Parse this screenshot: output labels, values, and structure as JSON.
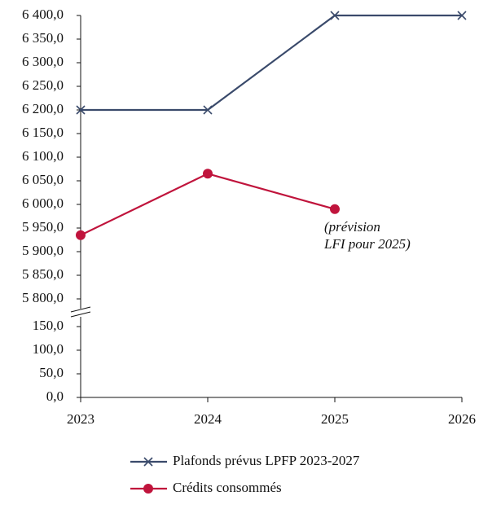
{
  "chart_data": {
    "type": "line",
    "x": [
      2023,
      2024,
      2025,
      2026
    ],
    "xlim": [
      2023,
      2026
    ],
    "xticks": [
      2023,
      2024,
      2025,
      2026
    ],
    "ylim": [
      0,
      6400
    ],
    "y_break": [
      150,
      5800
    ],
    "yticks": [
      {
        "value": 0,
        "label": "0,0"
      },
      {
        "value": 50,
        "label": "50,0"
      },
      {
        "value": 100,
        "label": "100,0"
      },
      {
        "value": 150,
        "label": "150,0"
      },
      {
        "value": 5800,
        "label": "5 800,0"
      },
      {
        "value": 5850,
        "label": "5 850,0"
      },
      {
        "value": 5900,
        "label": "5 900,0"
      },
      {
        "value": 5950,
        "label": "5 950,0"
      },
      {
        "value": 6000,
        "label": "6 000,0"
      },
      {
        "value": 6050,
        "label": "6 050,0"
      },
      {
        "value": 6100,
        "label": "6 100,0"
      },
      {
        "value": 6150,
        "label": "6 150,0"
      },
      {
        "value": 6200,
        "label": "6 200,0"
      },
      {
        "value": 6250,
        "label": "6 250,0"
      },
      {
        "value": 6300,
        "label": "6 300,0"
      },
      {
        "value": 6350,
        "label": "6 350,0"
      },
      {
        "value": 6400,
        "label": "6 400,0"
      }
    ],
    "grid": false,
    "legend": "bottom",
    "series": [
      {
        "name": "Plafonds prévus LPFP 2023-2027",
        "color": "#3a4a6b",
        "marker": "x",
        "values": [
          6200,
          6200,
          6400,
          6400
        ]
      },
      {
        "name": "Crédits consommés",
        "color": "#c0143c",
        "marker": "circle",
        "values": [
          5935,
          6065,
          5990,
          null
        ]
      }
    ],
    "annotation_lines": [
      "(prévision",
      "LFI pour 2025)"
    ]
  }
}
